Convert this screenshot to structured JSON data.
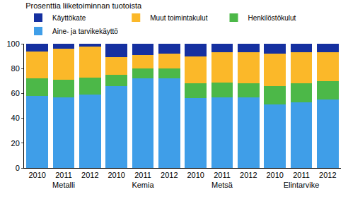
{
  "chart_data": {
    "type": "bar",
    "title": "Prosenttia liiketoiminnan tuotoista",
    "stacked": true,
    "grid": false,
    "legend": "top",
    "category_groups": [
      "Metalli",
      "Metalli",
      "Metalli",
      "Kemia",
      "Kemia",
      "Kemia",
      "Metsä",
      "Metsä",
      "Metsä",
      "Elintarvike",
      "Elintarvike",
      "Elintarvike"
    ],
    "categories": [
      "2010",
      "2011",
      "2012",
      "2010",
      "2011",
      "2012",
      "2010",
      "2011",
      "2012",
      "2010",
      "2011",
      "2012"
    ],
    "series": [
      {
        "name": "Aine- ja tarvikekäyttö",
        "color": "#3f9ee8",
        "values": [
          58,
          57,
          59,
          66,
          72,
          72,
          56,
          57,
          57,
          51,
          53,
          55
        ]
      },
      {
        "name": "Henkilöstökulut",
        "color": "#4cb848",
        "values": [
          14,
          14,
          14,
          9,
          8,
          8,
          12,
          12,
          11,
          15,
          15,
          15
        ]
      },
      {
        "name": "Muut toimintakulut",
        "color": "#fbb829",
        "values": [
          22,
          25,
          25,
          14,
          11,
          12,
          22,
          24,
          25,
          26,
          25,
          23
        ]
      },
      {
        "name": "Käyttökate",
        "color": "#1530a0",
        "values": [
          6,
          4,
          2,
          11,
          9,
          8,
          10,
          7,
          7,
          8,
          7,
          7
        ]
      }
    ],
    "ylim": [
      0,
      100
    ],
    "yticks": [
      0,
      20,
      40,
      60,
      80,
      100
    ]
  }
}
